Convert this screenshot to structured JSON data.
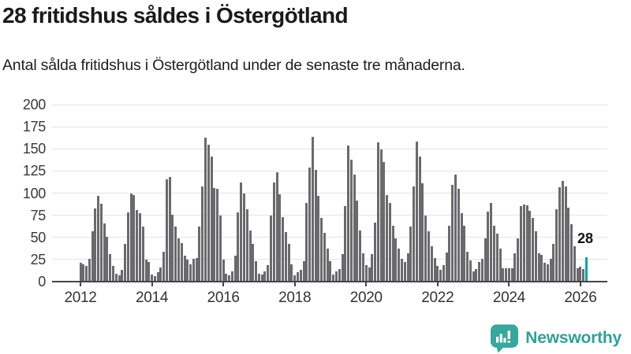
{
  "header": {
    "title": "28 fritidshus såldes i Östergötland",
    "subtitle": "Antal sålda fritidshus i Östergötland under de senaste tre månaderna."
  },
  "chart_data": {
    "type": "bar",
    "title": "28 fritidshus såldes i Östergötland",
    "subtitle": "Antal sålda fritidshus i Östergötland under de senaste tre månaderna.",
    "start_month": "2012-01",
    "end_month": "2026-03",
    "frequency": "monthly",
    "values": [
      21,
      20,
      18,
      26,
      57,
      83,
      97,
      88,
      66,
      51,
      31,
      18,
      9,
      7,
      13,
      43,
      78,
      100,
      98,
      81,
      77,
      62,
      25,
      22,
      8,
      6,
      11,
      16,
      34,
      116,
      118,
      76,
      62,
      49,
      44,
      29,
      25,
      20,
      26,
      27,
      62,
      108,
      163,
      155,
      141,
      106,
      105,
      75,
      25,
      9,
      7,
      12,
      29,
      78,
      112,
      100,
      82,
      58,
      43,
      23,
      9,
      8,
      12,
      19,
      75,
      112,
      124,
      99,
      73,
      56,
      43,
      20,
      7,
      11,
      13,
      23,
      89,
      129,
      164,
      126,
      97,
      72,
      55,
      37,
      23,
      8,
      12,
      14,
      31,
      85,
      154,
      138,
      121,
      92,
      58,
      32,
      19,
      16,
      31,
      67,
      157,
      149,
      135,
      98,
      89,
      63,
      49,
      37,
      26,
      22,
      32,
      62,
      108,
      158,
      141,
      111,
      75,
      57,
      40,
      27,
      18,
      13,
      19,
      33,
      63,
      109,
      121,
      105,
      77,
      63,
      34,
      24,
      12,
      14,
      22,
      26,
      49,
      79,
      89,
      63,
      54,
      37,
      15,
      15,
      15,
      15,
      32,
      49,
      85,
      87,
      86,
      80,
      72,
      57,
      32,
      30,
      21,
      20,
      26,
      43,
      82,
      107,
      114,
      108,
      84,
      65,
      40,
      15,
      17,
      14,
      28
    ],
    "highlight_last_value": 28,
    "annotation": {
      "label": "28",
      "value": 28
    },
    "y_axis": {
      "min": 0,
      "max": 200,
      "step": 25,
      "tick_labels": [
        "0",
        "25",
        "50",
        "75",
        "100",
        "125",
        "150",
        "175",
        "200"
      ]
    },
    "x_axis": {
      "tick_labels": [
        "2012",
        "2014",
        "2016",
        "2018",
        "2020",
        "2022",
        "2024",
        "2026"
      ]
    },
    "grid": "horizontal",
    "legend": "none",
    "colors": {
      "bar": "#6a6a6e",
      "highlight": "#07a79b",
      "gridline": "#e3e3e3",
      "axis": "#45454a",
      "tick_text": "#3a3a3a"
    }
  },
  "branding": {
    "logo_text": "Newsworthy",
    "logo_color": "#2fa099",
    "logo_icon": "bar-chart-speech-bubble-icon",
    "icon_fill": "#38a79d"
  }
}
